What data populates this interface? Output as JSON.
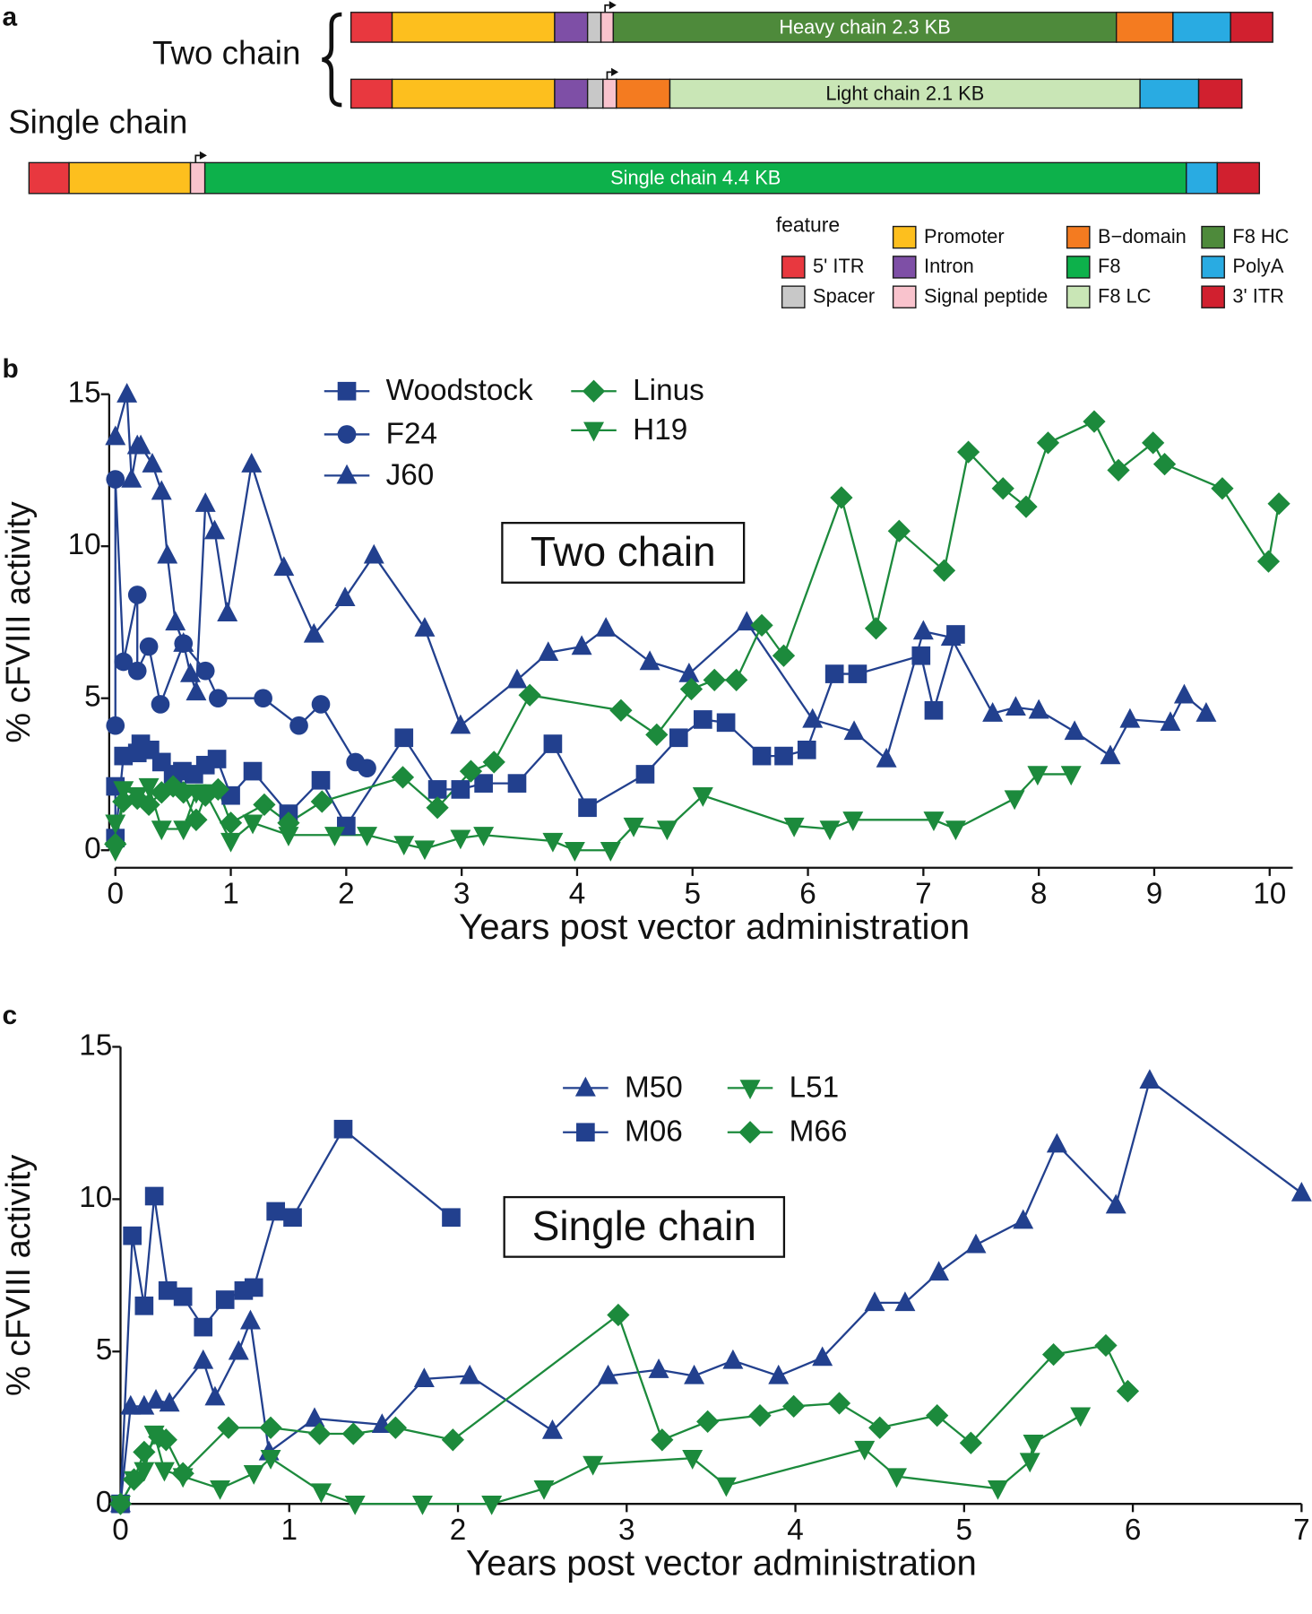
{
  "diagram": {
    "panel_label": "a",
    "groups": [
      "Two chain",
      "Single chain"
    ],
    "constructs": [
      {
        "label": "Heavy chain 2.3 KB"
      },
      {
        "label": "Light chain 2.1 KB"
      },
      {
        "label": "Single chain 4.4 KB"
      }
    ],
    "legend_title": "feature",
    "features": [
      {
        "name": "5' ITR",
        "color": "#e8383f"
      },
      {
        "name": "Spacer",
        "color": "#c8c8c8"
      },
      {
        "name": "Promoter",
        "color": "#fdbf1e"
      },
      {
        "name": "Intron",
        "color": "#7e4fa6"
      },
      {
        "name": "Signal peptide",
        "color": "#f9c3cd"
      },
      {
        "name": "B−domain",
        "color": "#f47b20"
      },
      {
        "name": "F8",
        "color": "#0db14b"
      },
      {
        "name": "F8 LC",
        "color": "#c9e6b6"
      },
      {
        "name": "F8 HC",
        "color": "#4e8a3b"
      },
      {
        "name": "PolyA",
        "color": "#29abe2"
      },
      {
        "name": "3' ITR",
        "color": "#d1202f"
      }
    ]
  },
  "chart_data": [
    {
      "type": "line",
      "panel_label": "b",
      "annotation": "Two chain",
      "ylabel": "% cFVIII activity",
      "xlabel": "Years post vector administration",
      "xlim": [
        0,
        10.2
      ],
      "ylim": [
        0,
        15
      ],
      "xticks": [
        0,
        1,
        2,
        3,
        4,
        5,
        6,
        7,
        8,
        9,
        10
      ],
      "yticks": [
        0,
        5,
        10,
        15
      ],
      "series": [
        {
          "name": "Woodstock",
          "color": "#22408e",
          "marker": "square",
          "x": [
            0,
            0,
            0.07,
            0.19,
            0.22,
            0.3,
            0.4,
            0.5,
            0.58,
            0.68,
            0.78,
            0.88,
            1.0,
            1.19,
            1.5,
            1.78,
            2.0,
            2.5,
            2.79,
            2.99,
            3.19,
            3.48,
            3.79,
            4.09,
            4.59,
            4.88,
            5.09,
            5.29,
            5.6,
            5.79,
            5.99,
            6.23,
            6.43,
            6.98,
            7.09,
            7.28
          ],
          "values": [
            2.1,
            0.4,
            3.1,
            3.2,
            3.5,
            3.3,
            2.9,
            2.5,
            2.6,
            2.5,
            2.8,
            3.0,
            1.8,
            2.6,
            1.2,
            2.3,
            0.8,
            3.7,
            2.0,
            2.0,
            2.2,
            2.2,
            3.5,
            1.4,
            2.5,
            3.7,
            4.3,
            4.2,
            3.1,
            3.1,
            3.3,
            5.8,
            5.8,
            6.4,
            4.6,
            7.1
          ]
        },
        {
          "name": "F24",
          "color": "#22408e",
          "marker": "circle",
          "x": [
            0,
            0,
            0.07,
            0.19,
            0.19,
            0.29,
            0.39,
            0.59,
            0.78,
            0.89,
            1.28,
            1.59,
            1.78,
            2.08,
            2.18
          ],
          "values": [
            4.1,
            12.2,
            6.2,
            8.4,
            5.9,
            6.7,
            4.8,
            6.8,
            5.9,
            5.0,
            5.0,
            4.1,
            4.8,
            2.9,
            2.7
          ]
        },
        {
          "name": "J60",
          "color": "#22408e",
          "marker": "triangle-up",
          "x": [
            0,
            0.1,
            0.14,
            0.19,
            0.22,
            0.32,
            0.4,
            0.45,
            0.52,
            0.59,
            0.65,
            0.7,
            0.78,
            0.86,
            0.97,
            1.18,
            1.46,
            1.72,
            1.99,
            2.24,
            2.68,
            2.99,
            3.48,
            3.75,
            4.04,
            4.25,
            4.63,
            4.97,
            5.47,
            6.04,
            6.4,
            6.68,
            7.0,
            7.24,
            7.6,
            7.8,
            8.0,
            8.31,
            8.62,
            8.79,
            9.14,
            9.26,
            9.45
          ],
          "values": [
            13.6,
            15.0,
            12.2,
            13.3,
            13.3,
            12.7,
            11.8,
            9.7,
            7.5,
            6.8,
            5.8,
            5.2,
            11.4,
            10.5,
            7.8,
            12.7,
            9.3,
            7.1,
            8.3,
            9.7,
            7.3,
            4.1,
            5.6,
            6.5,
            6.7,
            7.3,
            6.2,
            5.8,
            7.5,
            4.3,
            3.9,
            3.0,
            7.2,
            7.0,
            4.5,
            4.7,
            4.6,
            3.9,
            3.1,
            4.3,
            4.2,
            5.1,
            4.5
          ]
        },
        {
          "name": "Linus",
          "color": "#1c8a3c",
          "marker": "diamond",
          "x": [
            0,
            0.07,
            0.19,
            0.29,
            0.4,
            0.5,
            0.59,
            0.7,
            0.78,
            0.89,
            1.0,
            1.29,
            1.5,
            1.79,
            2.49,
            2.79,
            3.08,
            3.28,
            3.59,
            4.38,
            4.69,
            4.99,
            5.19,
            5.38,
            5.6,
            5.79,
            6.29,
            6.59,
            6.79,
            7.18,
            7.39,
            7.69,
            7.89,
            8.08,
            8.48,
            8.69,
            8.99,
            9.09,
            9.59,
            9.99,
            10.08
          ],
          "values": [
            0.2,
            1.6,
            1.7,
            1.5,
            1.9,
            2.1,
            1.9,
            1.0,
            1.8,
            2.0,
            0.9,
            1.5,
            0.9,
            1.6,
            2.4,
            1.4,
            2.6,
            2.9,
            5.1,
            4.6,
            3.8,
            5.3,
            5.6,
            5.6,
            7.4,
            6.4,
            11.6,
            7.3,
            10.5,
            9.2,
            13.1,
            11.9,
            11.3,
            13.4,
            14.1,
            12.5,
            13.4,
            12.7,
            11.9,
            9.5,
            11.4
          ]
        },
        {
          "name": "H19",
          "color": "#1c8a3c",
          "marker": "triangle-down",
          "x": [
            0,
            0,
            0.07,
            0.19,
            0.29,
            0.4,
            0.59,
            0.7,
            0.78,
            1.0,
            1.19,
            1.5,
            1.9,
            2.18,
            2.5,
            2.68,
            2.99,
            3.19,
            3.79,
            3.98,
            4.29,
            4.49,
            4.78,
            5.09,
            5.88,
            6.19,
            6.39,
            7.09,
            7.28,
            7.79,
            7.99,
            8.28
          ],
          "values": [
            0.9,
            0,
            2.0,
            1.8,
            2.1,
            0.7,
            0.7,
            1.9,
            1.9,
            0.3,
            0.9,
            0.5,
            0.5,
            0.5,
            0.2,
            0.05,
            0.4,
            0.5,
            0.3,
            0,
            0,
            0.8,
            0.7,
            1.8,
            0.8,
            0.7,
            1.0,
            1.0,
            0.7,
            1.7,
            2.5,
            2.5
          ]
        }
      ]
    },
    {
      "type": "line",
      "panel_label": "c",
      "annotation": "Single chain",
      "ylabel": "% cFVIII activity",
      "xlabel": "Years post vector administration",
      "xlim": [
        0,
        7
      ],
      "ylim": [
        0,
        15
      ],
      "xticks": [
        0,
        1,
        2,
        3,
        4,
        5,
        6,
        7
      ],
      "yticks": [
        0,
        5,
        10,
        15
      ],
      "series": [
        {
          "name": "M50",
          "color": "#22408e",
          "marker": "triangle-up",
          "x": [
            0,
            0.06,
            0.14,
            0.21,
            0.29,
            0.49,
            0.56,
            0.7,
            0.77,
            0.88,
            1.15,
            1.55,
            1.8,
            2.07,
            2.56,
            2.89,
            3.19,
            3.4,
            3.63,
            3.9,
            4.16,
            4.47,
            4.65,
            4.85,
            5.07,
            5.35,
            5.55,
            5.9,
            6.1,
            7.0
          ],
          "values": [
            0,
            3.2,
            3.2,
            3.4,
            3.3,
            4.7,
            3.5,
            5.0,
            6.0,
            1.7,
            2.8,
            2.6,
            4.1,
            4.2,
            2.4,
            4.2,
            4.4,
            4.2,
            4.7,
            4.2,
            4.8,
            6.6,
            6.6,
            7.6,
            8.5,
            9.3,
            11.8,
            9.8,
            13.9,
            10.2
          ]
        },
        {
          "name": "M06",
          "color": "#22408e",
          "marker": "square",
          "x": [
            0,
            0.07,
            0.14,
            0.2,
            0.28,
            0.37,
            0.49,
            0.62,
            0.73,
            0.79,
            0.92,
            1.02,
            1.32,
            1.96
          ],
          "values": [
            0,
            8.8,
            6.5,
            10.1,
            7.0,
            6.8,
            5.8,
            6.7,
            7.0,
            7.1,
            9.6,
            9.4,
            12.3,
            9.4
          ]
        },
        {
          "name": "L51",
          "color": "#1c8a3c",
          "marker": "triangle-down",
          "x": [
            0,
            0.08,
            0.14,
            0.2,
            0.26,
            0.37,
            0.59,
            0.79,
            0.89,
            1.19,
            1.39,
            1.79,
            2.2,
            2.51,
            2.8,
            3.39,
            3.59,
            4.41,
            4.6,
            5.2,
            5.39,
            5.41,
            5.69
          ],
          "values": [
            0,
            0.8,
            1.1,
            2.3,
            1.1,
            0.9,
            0.5,
            1.0,
            1.5,
            0.4,
            0,
            0,
            0,
            0.5,
            1.3,
            1.5,
            0.6,
            1.8,
            0.9,
            0.5,
            1.4,
            2.0,
            2.9
          ]
        },
        {
          "name": "M66",
          "color": "#1c8a3c",
          "marker": "diamond",
          "x": [
            0,
            0.08,
            0.14,
            0.23,
            0.27,
            0.37,
            0.64,
            0.89,
            1.18,
            1.38,
            1.63,
            1.97,
            2.95,
            3.21,
            3.48,
            3.79,
            3.99,
            4.26,
            4.5,
            4.84,
            5.04,
            5.53,
            5.84,
            5.97
          ],
          "values": [
            0,
            0.8,
            1.7,
            2.2,
            2.1,
            1.0,
            2.5,
            2.5,
            2.3,
            2.3,
            2.5,
            2.1,
            6.2,
            2.1,
            2.7,
            2.9,
            3.2,
            3.3,
            2.5,
            2.9,
            2.0,
            4.9,
            5.2,
            3.7
          ]
        }
      ]
    }
  ]
}
